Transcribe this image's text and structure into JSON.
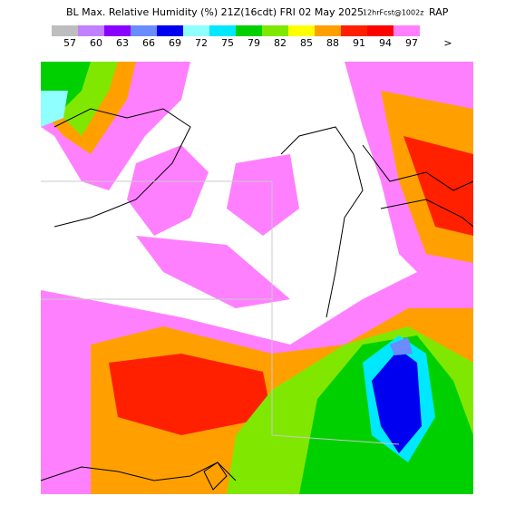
{
  "header": {
    "title": "BL Max. Relative Humidity (%) 21Z(16cdt) FRI 02 May 2025",
    "forecast": "12hrFcst@1002z",
    "model": "RAP"
  },
  "legend": {
    "levels": [
      57,
      60,
      63,
      66,
      69,
      72,
      75,
      79,
      82,
      85,
      88,
      91,
      94,
      97
    ],
    "colors": [
      "#bebebe",
      "#c080ff",
      "#8a00ff",
      "#6a8cff",
      "#0000f0",
      "#90ffff",
      "#00e8ff",
      "#00d000",
      "#80e800",
      "#ffff00",
      "#ffa000",
      "#ff2000",
      "#ff0000",
      "#ff80ff"
    ],
    "overflow": ">"
  }
}
